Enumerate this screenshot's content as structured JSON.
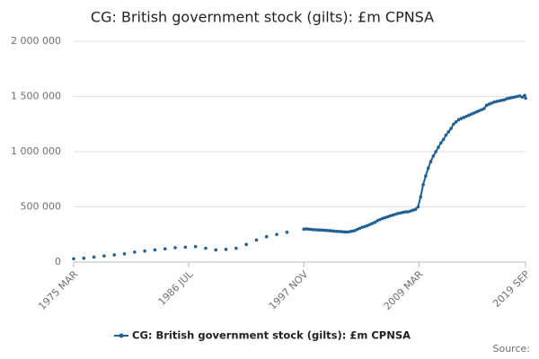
{
  "chart_data": {
    "type": "line",
    "title": "CG: British government stock (gilts): £m CPNSA",
    "source": "Source:",
    "x": [
      "1975-03",
      "1975-09",
      "1976-03",
      "1976-09",
      "1977-03",
      "1977-09",
      "1978-03",
      "1978-09",
      "1979-03",
      "1979-09",
      "1980-03",
      "1980-09",
      "1981-03",
      "1981-09",
      "1982-03",
      "1982-09",
      "1983-03",
      "1983-09",
      "1984-03",
      "1984-09",
      "1985-03",
      "1985-09",
      "1986-03",
      "1986-09",
      "1987-03",
      "1987-09",
      "1988-03",
      "1988-09",
      "1989-03",
      "1989-09",
      "1990-03",
      "1990-09",
      "1991-03",
      "1991-09",
      "1992-03",
      "1992-09",
      "1993-03",
      "1993-09",
      "1994-03",
      "1994-09",
      "1995-03",
      "1995-09",
      "1996-03",
      "1996-09",
      "1997-11",
      "1998-02",
      "1998-05",
      "1998-08",
      "1998-11",
      "1999-02",
      "1999-05",
      "1999-08",
      "1999-11",
      "2000-02",
      "2000-05",
      "2000-08",
      "2000-11",
      "2001-02",
      "2001-05",
      "2001-08",
      "2001-11",
      "2002-02",
      "2002-05",
      "2002-08",
      "2002-11",
      "2003-02",
      "2003-05",
      "2003-08",
      "2003-11",
      "2004-02",
      "2004-05",
      "2004-08",
      "2004-11",
      "2005-02",
      "2005-05",
      "2005-08",
      "2005-11",
      "2006-02",
      "2006-05",
      "2006-08",
      "2006-11",
      "2007-02",
      "2007-05",
      "2007-08",
      "2007-11",
      "2008-02",
      "2008-05",
      "2008-08",
      "2008-11",
      "2009-02",
      "2009-05",
      "2009-08",
      "2009-11",
      "2010-02",
      "2010-05",
      "2010-08",
      "2010-11",
      "2011-02",
      "2011-05",
      "2011-08",
      "2011-11",
      "2012-02",
      "2012-05",
      "2012-08",
      "2012-11",
      "2013-02",
      "2013-05",
      "2013-08",
      "2013-11",
      "2014-02",
      "2014-05",
      "2014-08",
      "2014-11",
      "2015-02",
      "2015-05",
      "2015-08",
      "2015-11",
      "2016-02",
      "2016-05",
      "2016-08",
      "2016-11",
      "2017-02",
      "2017-05",
      "2017-08",
      "2017-11",
      "2018-02",
      "2018-05",
      "2018-08",
      "2018-11",
      "2019-02",
      "2019-05",
      "2019-08",
      "2019-09"
    ],
    "series": [
      {
        "name": "CG: British government stock (gilts): £m CPNSA",
        "color": "#206095",
        "marker": true,
        "values": [
          30000,
          null,
          35000,
          null,
          45000,
          null,
          55000,
          null,
          65000,
          null,
          75000,
          null,
          90000,
          null,
          100000,
          null,
          110000,
          null,
          120000,
          null,
          130000,
          null,
          135000,
          null,
          140000,
          null,
          125000,
          null,
          110000,
          null,
          115000,
          null,
          125000,
          null,
          160000,
          null,
          200000,
          null,
          230000,
          null,
          250000,
          null,
          270000,
          null,
          298000,
          300000,
          298000,
          295000,
          293000,
          292000,
          290000,
          290000,
          288000,
          287000,
          285000,
          283000,
          280000,
          278000,
          277000,
          275000,
          273000,
          272000,
          275000,
          280000,
          285000,
          295000,
          305000,
          315000,
          322000,
          330000,
          340000,
          350000,
          360000,
          375000,
          385000,
          395000,
          402000,
          410000,
          418000,
          425000,
          432000,
          440000,
          445000,
          450000,
          455000,
          455000,
          462000,
          470000,
          478000,
          500000,
          590000,
          700000,
          780000,
          850000,
          910000,
          960000,
          1000000,
          1040000,
          1080000,
          1110000,
          1150000,
          1180000,
          1210000,
          1250000,
          1270000,
          1290000,
          1300000,
          1310000,
          1320000,
          1330000,
          1340000,
          1350000,
          1360000,
          1370000,
          1380000,
          1390000,
          1420000,
          1430000,
          1440000,
          1450000,
          1455000,
          1460000,
          1465000,
          1470000,
          1480000,
          1485000,
          1490000,
          1495000,
          1500000,
          1505000,
          1495000,
          1510000,
          1485000
        ]
      }
    ],
    "xlim": [
      "1975-03",
      "2019-09"
    ],
    "xticks": [
      {
        "value": "1975-03",
        "label": "1975 MAR"
      },
      {
        "value": "1986-07",
        "label": "1986 JUL"
      },
      {
        "value": "1997-11",
        "label": "1997 NOV"
      },
      {
        "value": "2009-03",
        "label": "2009 MAR"
      },
      {
        "value": "2019-09",
        "label": "2019 SEP"
      }
    ],
    "ylim": [
      0,
      2000000
    ],
    "yticks": [
      0,
      {
        "value": 500000,
        "label": "500 000"
      },
      {
        "value": 1000000,
        "label": "1 000 000"
      },
      {
        "value": 1500000,
        "label": "1 500 000"
      },
      {
        "value": 2000000,
        "label": "2 000 000"
      }
    ],
    "grid": true
  }
}
